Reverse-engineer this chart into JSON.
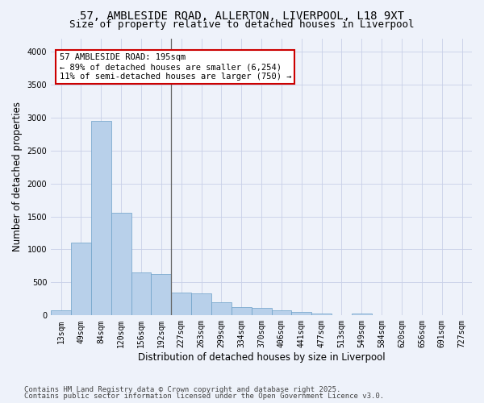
{
  "title_line1": "57, AMBLESIDE ROAD, ALLERTON, LIVERPOOL, L18 9XT",
  "title_line2": "Size of property relative to detached houses in Liverpool",
  "xlabel": "Distribution of detached houses by size in Liverpool",
  "ylabel": "Number of detached properties",
  "bar_color": "#b8d0ea",
  "bar_edge_color": "#6ca0c8",
  "background_color": "#eef2fa",
  "annotation_line1": "57 AMBLESIDE ROAD: 195sqm",
  "annotation_line2": "← 89% of detached houses are smaller (6,254)",
  "annotation_line3": "11% of semi-detached houses are larger (750) →",
  "annotation_box_color": "#ffffff",
  "annotation_box_edge": "#cc0000",
  "vline_color": "#666666",
  "vline_x_index": 5,
  "categories": [
    "13sqm",
    "49sqm",
    "84sqm",
    "120sqm",
    "156sqm",
    "192sqm",
    "227sqm",
    "263sqm",
    "299sqm",
    "334sqm",
    "370sqm",
    "406sqm",
    "441sqm",
    "477sqm",
    "513sqm",
    "549sqm",
    "584sqm",
    "620sqm",
    "656sqm",
    "691sqm",
    "727sqm"
  ],
  "values": [
    75,
    1100,
    2950,
    1550,
    650,
    625,
    340,
    335,
    200,
    125,
    120,
    80,
    50,
    30,
    5,
    30,
    5,
    5,
    5,
    5,
    5
  ],
  "ylim": [
    0,
    4200
  ],
  "yticks": [
    0,
    500,
    1000,
    1500,
    2000,
    2500,
    3000,
    3500,
    4000
  ],
  "footnote1": "Contains HM Land Registry data © Crown copyright and database right 2025.",
  "footnote2": "Contains public sector information licensed under the Open Government Licence v3.0.",
  "grid_color": "#c8d0e8",
  "title_fontsize": 10,
  "subtitle_fontsize": 9,
  "tick_fontsize": 7,
  "label_fontsize": 8.5,
  "footnote_fontsize": 6.5,
  "annotation_fontsize": 7.5
}
